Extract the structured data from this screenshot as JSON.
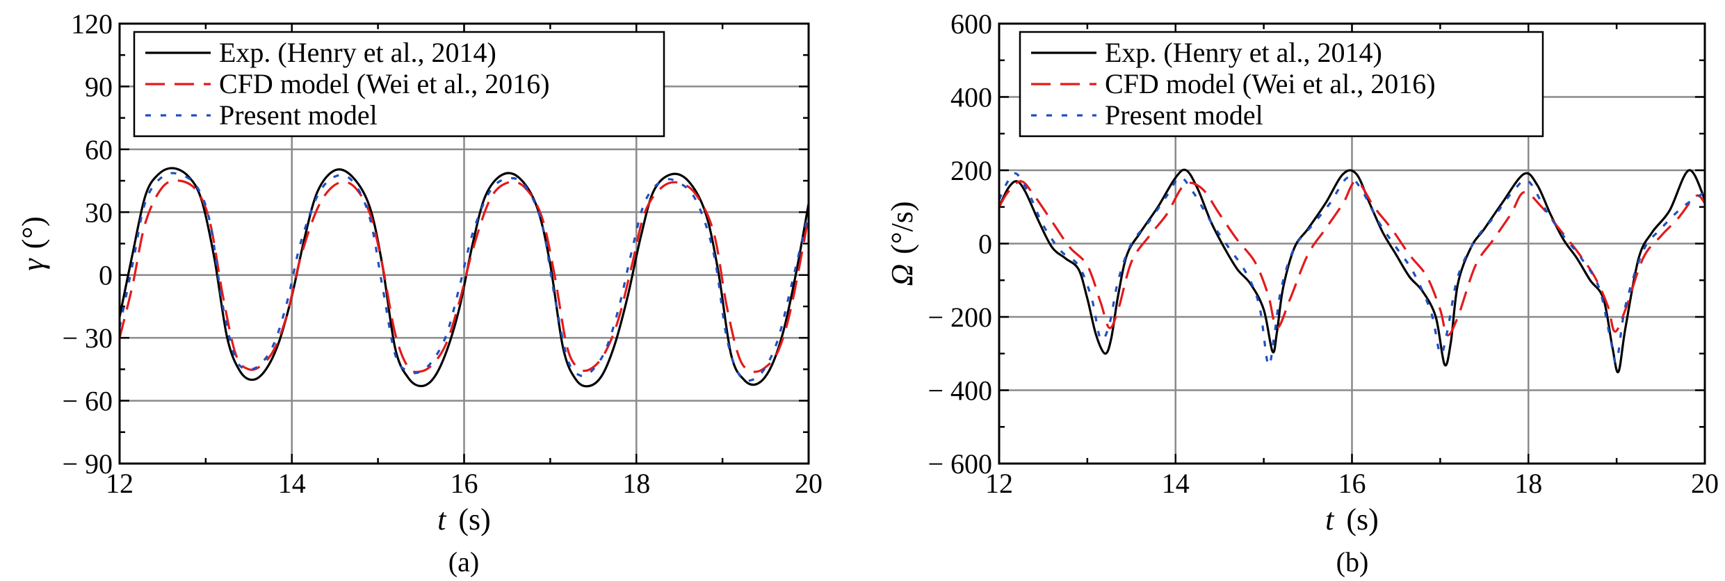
{
  "chart_data": [
    {
      "type": "line",
      "panel_label": "(a)",
      "xlabel": {
        "symbol": "t",
        "unit": "(s)"
      },
      "ylabel": {
        "symbol": "γ",
        "unit": "(°)"
      },
      "xlim": [
        12,
        20
      ],
      "ylim": [
        -90,
        120
      ],
      "xticks": [
        12,
        14,
        16,
        18,
        20
      ],
      "yticks": [
        120,
        90,
        60,
        30,
        0,
        -30,
        -60,
        -90
      ],
      "ytick_labels": [
        "120",
        "90",
        "60",
        "30",
        "0",
        "− 30",
        "− 60",
        "− 90"
      ],
      "xtick_labels": [
        "12",
        "14",
        "16",
        "18",
        "20"
      ],
      "grid": true,
      "legend_position": "top-left",
      "series": [
        {
          "name": "Exp. (Henry et al., 2014)",
          "color": "#000000",
          "style": "solid",
          "x": [
            12.0,
            12.15,
            12.3,
            12.45,
            12.62,
            12.8,
            12.95,
            13.1,
            13.25,
            13.4,
            13.55,
            13.7,
            13.85,
            14.0,
            14.15,
            14.3,
            14.5,
            14.7,
            14.9,
            15.05,
            15.2,
            15.35,
            15.5,
            15.65,
            15.8,
            15.95,
            16.1,
            16.25,
            16.45,
            16.65,
            16.85,
            17.0,
            17.15,
            17.3,
            17.45,
            17.6,
            17.75,
            17.9,
            18.05,
            18.2,
            18.4,
            18.6,
            18.8,
            18.95,
            19.1,
            19.25,
            19.4,
            19.55,
            19.7,
            19.85,
            20.0
          ],
          "y": [
            -20,
            10,
            38,
            48,
            51,
            47,
            36,
            8,
            -30,
            -46,
            -50,
            -45,
            -32,
            -10,
            18,
            40,
            50,
            47,
            33,
            5,
            -35,
            -49,
            -53,
            -49,
            -36,
            -15,
            15,
            38,
            48,
            46,
            32,
            5,
            -35,
            -50,
            -53,
            -48,
            -33,
            -10,
            18,
            40,
            48,
            45,
            30,
            2,
            -38,
            -50,
            -52,
            -45,
            -28,
            0,
            34
          ]
        },
        {
          "name": "CFD model (Wei et al., 2016)",
          "color": "#e31a1c",
          "style": "dashed",
          "x": [
            12.0,
            12.15,
            12.3,
            12.5,
            12.7,
            12.9,
            13.05,
            13.2,
            13.35,
            13.5,
            13.65,
            13.8,
            13.95,
            14.1,
            14.3,
            14.5,
            14.7,
            14.9,
            15.05,
            15.2,
            15.35,
            15.5,
            15.65,
            15.8,
            15.95,
            16.1,
            16.3,
            16.5,
            16.7,
            16.9,
            17.05,
            17.2,
            17.35,
            17.5,
            17.65,
            17.8,
            17.95,
            18.1,
            18.3,
            18.5,
            18.7,
            18.9,
            19.05,
            19.2,
            19.35,
            19.5,
            19.65,
            19.8,
            20.0
          ],
          "y": [
            -30,
            -5,
            25,
            42,
            45,
            40,
            25,
            -10,
            -38,
            -45,
            -43,
            -35,
            -18,
            8,
            32,
            43,
            43,
            30,
            5,
            -28,
            -44,
            -46,
            -42,
            -32,
            -12,
            12,
            36,
            44,
            42,
            28,
            0,
            -35,
            -45,
            -44,
            -36,
            -20,
            5,
            30,
            42,
            44,
            38,
            20,
            -15,
            -40,
            -46,
            -44,
            -36,
            -15,
            28
          ]
        },
        {
          "name": "Present model",
          "color": "#1f4fbf",
          "style": "dotted",
          "x": [
            12.0,
            12.15,
            12.3,
            12.5,
            12.7,
            12.9,
            13.05,
            13.2,
            13.35,
            13.5,
            13.65,
            13.8,
            13.95,
            14.1,
            14.3,
            14.5,
            14.7,
            14.9,
            15.05,
            15.2,
            15.35,
            15.5,
            15.65,
            15.8,
            15.95,
            16.1,
            16.3,
            16.5,
            16.7,
            16.9,
            17.05,
            17.2,
            17.35,
            17.5,
            17.65,
            17.8,
            17.95,
            18.1,
            18.3,
            18.5,
            18.7,
            18.9,
            19.05,
            19.2,
            19.35,
            19.5,
            19.65,
            19.8,
            20.0
          ],
          "y": [
            -25,
            5,
            35,
            47,
            48,
            42,
            25,
            -15,
            -40,
            -45,
            -42,
            -32,
            -12,
            15,
            38,
            47,
            45,
            28,
            -5,
            -38,
            -46,
            -46,
            -40,
            -28,
            -5,
            20,
            40,
            46,
            43,
            25,
            -10,
            -40,
            -48,
            -45,
            -35,
            -15,
            12,
            35,
            45,
            44,
            35,
            10,
            -30,
            -48,
            -50,
            -44,
            -30,
            -5,
            30
          ]
        }
      ]
    },
    {
      "type": "line",
      "panel_label": "(b)",
      "xlabel": {
        "symbol": "t",
        "unit": "(s)"
      },
      "ylabel": {
        "symbol": "Ω",
        "unit": "(°/s)"
      },
      "xlim": [
        12,
        20
      ],
      "ylim": [
        -600,
        600
      ],
      "xticks": [
        12,
        14,
        16,
        18,
        20
      ],
      "yticks": [
        600,
        400,
        200,
        0,
        -200,
        -400,
        -600
      ],
      "ytick_labels": [
        "600",
        "400",
        "200",
        "0",
        "− 200",
        "− 400",
        "− 600"
      ],
      "xtick_labels": [
        "12",
        "14",
        "16",
        "18",
        "20"
      ],
      "grid": true,
      "legend_position": "top-left",
      "series": [
        {
          "name": "Exp. (Henry et al., 2014)",
          "color": "#000000",
          "style": "solid",
          "x": [
            12.0,
            12.1,
            12.2,
            12.3,
            12.45,
            12.6,
            12.75,
            12.9,
            13.0,
            13.1,
            13.2,
            13.27,
            13.35,
            13.45,
            13.6,
            13.8,
            14.0,
            14.12,
            14.25,
            14.4,
            14.55,
            14.7,
            14.85,
            15.0,
            15.1,
            15.15,
            15.22,
            15.35,
            15.5,
            15.7,
            15.9,
            16.05,
            16.2,
            16.35,
            16.5,
            16.65,
            16.8,
            16.95,
            17.05,
            17.12,
            17.2,
            17.35,
            17.5,
            17.7,
            17.95,
            18.1,
            18.25,
            18.4,
            18.55,
            18.7,
            18.85,
            18.95,
            19.02,
            19.1,
            19.25,
            19.4,
            19.6,
            19.82,
            20.0
          ],
          "y": [
            100,
            150,
            170,
            140,
            60,
            -10,
            -40,
            -70,
            -150,
            -250,
            -300,
            -260,
            -140,
            -30,
            30,
            100,
            180,
            200,
            150,
            60,
            -10,
            -70,
            -110,
            -180,
            -295,
            -240,
            -120,
            -10,
            40,
            110,
            190,
            190,
            110,
            30,
            -30,
            -90,
            -130,
            -200,
            -330,
            -270,
            -110,
            -10,
            40,
            110,
            190,
            160,
            80,
            10,
            -40,
            -100,
            -150,
            -280,
            -350,
            -230,
            -40,
            30,
            90,
            200,
            120
          ]
        },
        {
          "name": "CFD model (Wei et al., 2016)",
          "color": "#e31a1c",
          "style": "dashed",
          "x": [
            12.0,
            12.1,
            12.25,
            12.4,
            12.6,
            12.8,
            13.0,
            13.15,
            13.25,
            13.35,
            13.5,
            13.7,
            13.9,
            14.1,
            14.3,
            14.5,
            14.7,
            14.9,
            15.05,
            15.15,
            15.3,
            15.5,
            15.7,
            15.9,
            16.05,
            16.25,
            16.45,
            16.65,
            16.85,
            17.0,
            17.08,
            17.2,
            17.4,
            17.6,
            17.8,
            17.95,
            18.15,
            18.35,
            18.55,
            18.75,
            18.9,
            18.98,
            19.1,
            19.3,
            19.5,
            19.7,
            19.9,
            20.0
          ],
          "y": [
            100,
            140,
            170,
            130,
            60,
            -10,
            -60,
            -160,
            -230,
            -180,
            -50,
            20,
            80,
            160,
            150,
            80,
            10,
            -50,
            -140,
            -230,
            -150,
            -30,
            40,
            110,
            170,
            100,
            40,
            -30,
            -90,
            -180,
            -250,
            -200,
            -60,
            10,
            80,
            140,
            100,
            40,
            -20,
            -90,
            -170,
            -240,
            -180,
            -40,
            20,
            70,
            130,
            110
          ]
        },
        {
          "name": "Present model",
          "color": "#1f4fbf",
          "style": "dotted",
          "x": [
            12.0,
            12.1,
            12.2,
            12.35,
            12.5,
            12.7,
            12.9,
            13.05,
            13.15,
            13.25,
            13.35,
            13.5,
            13.7,
            13.9,
            14.05,
            14.2,
            14.4,
            14.6,
            14.8,
            14.95,
            15.05,
            15.12,
            15.2,
            15.35,
            15.55,
            15.75,
            15.95,
            16.1,
            16.3,
            16.5,
            16.7,
            16.9,
            17.0,
            17.08,
            17.2,
            17.4,
            17.6,
            17.85,
            18.0,
            18.2,
            18.4,
            18.6,
            18.8,
            18.93,
            19.0,
            19.1,
            19.3,
            19.5,
            19.75,
            20.0
          ],
          "y": [
            120,
            170,
            190,
            130,
            50,
            -20,
            -60,
            -150,
            -260,
            -220,
            -100,
            0,
            60,
            130,
            180,
            140,
            60,
            -10,
            -80,
            -170,
            -330,
            -250,
            -120,
            -10,
            50,
            110,
            180,
            150,
            60,
            -10,
            -80,
            -190,
            -300,
            -240,
            -90,
            10,
            70,
            150,
            170,
            90,
            20,
            -40,
            -120,
            -260,
            -320,
            -170,
            -20,
            40,
            100,
            140
          ]
        }
      ]
    }
  ]
}
